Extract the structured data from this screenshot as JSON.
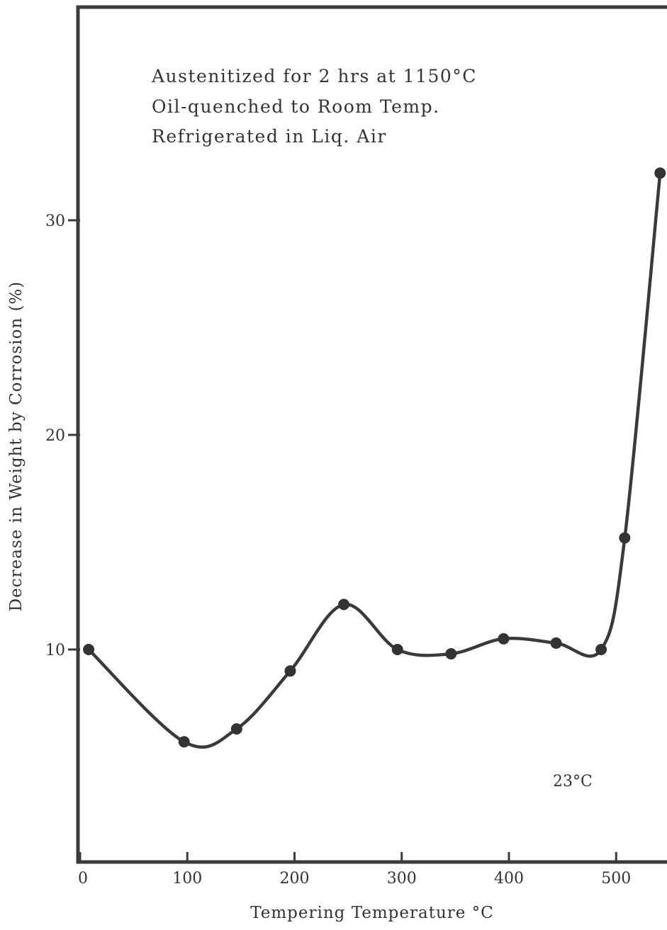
{
  "chart_data": {
    "type": "line",
    "xlabel": "Tempering Temperature °C",
    "ylabel": "Decrease in Weight by Corrosion (%)",
    "x_ticks": [
      "0",
      "100",
      "200",
      "300",
      "400",
      "500"
    ],
    "y_ticks": [
      "10",
      "20",
      "30"
    ],
    "xlim": [
      0,
      545
    ],
    "ylim": [
      0,
      40
    ],
    "grid": false,
    "annotations": [
      "Austenitized for 2 hrs at 1150°C",
      "Oil-quenched to Room Temp.",
      "Refrigerated in Liq. Air"
    ],
    "test_temperature_label": "23°C",
    "series": [
      {
        "x": [
          8,
          97,
          146,
          196,
          246,
          296,
          346,
          395,
          444,
          486,
          508,
          541
        ],
        "values": [
          10.0,
          5.7,
          6.3,
          9.0,
          12.1,
          10.0,
          9.8,
          10.5,
          10.3,
          10.0,
          15.2,
          32.2
        ]
      }
    ]
  }
}
